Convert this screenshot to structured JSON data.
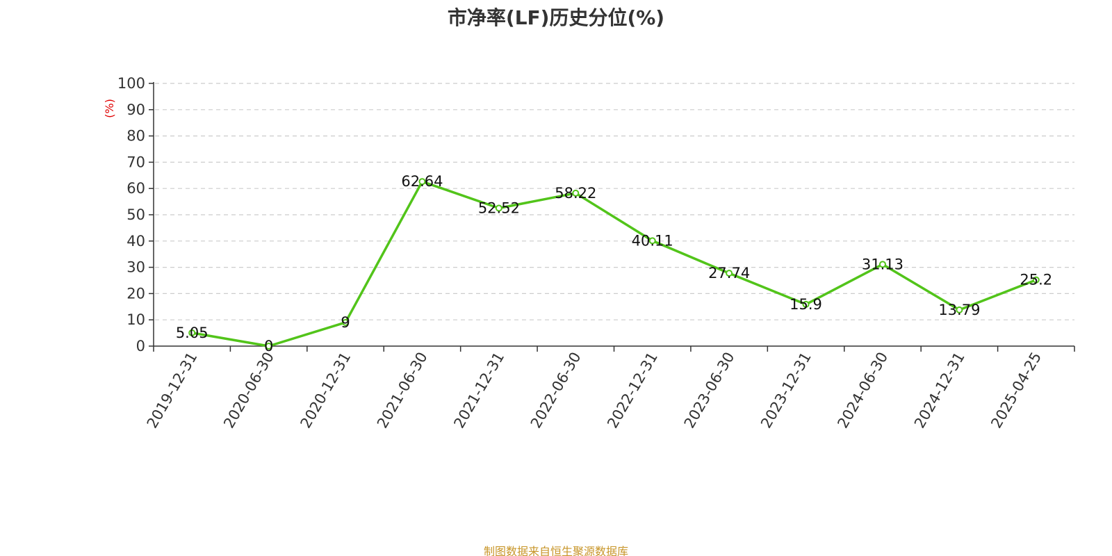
{
  "chart_data": {
    "type": "line",
    "title": "市净率(LF)历史分位(%)",
    "ylabel": "(%)",
    "xlabel": "",
    "categories": [
      "2019-12-31",
      "2020-06-30",
      "2020-12-31",
      "2021-06-30",
      "2021-12-31",
      "2022-06-30",
      "2022-12-31",
      "2023-06-30",
      "2023-12-31",
      "2024-06-30",
      "2024-12-31",
      "2025-04-25"
    ],
    "series": [
      {
        "values": [
          5.05,
          0,
          9,
          62.64,
          52.52,
          58.22,
          40.11,
          27.74,
          15.9,
          31.13,
          13.79,
          25.2
        ],
        "labels": [
          "5.05",
          "0",
          "9",
          "62.64",
          "52.52",
          "58.22",
          "40.11",
          "27.74",
          "15.9",
          "31.13",
          "13.79",
          "25.2"
        ],
        "color": "#52c41a"
      }
    ],
    "ylim": [
      0,
      100
    ],
    "yticks": [
      "0",
      "10",
      "20",
      "30",
      "40",
      "50",
      "60",
      "70",
      "80",
      "90",
      "100"
    ],
    "grid": true,
    "gridline_style": "dashed"
  },
  "source_note": "制图数据来自恒生聚源数据库",
  "colors": {
    "line": "#52c41a",
    "axis": "#333333",
    "grid": "#cccccc",
    "unit_label": "#e00000",
    "source_note": "#c8962a"
  }
}
